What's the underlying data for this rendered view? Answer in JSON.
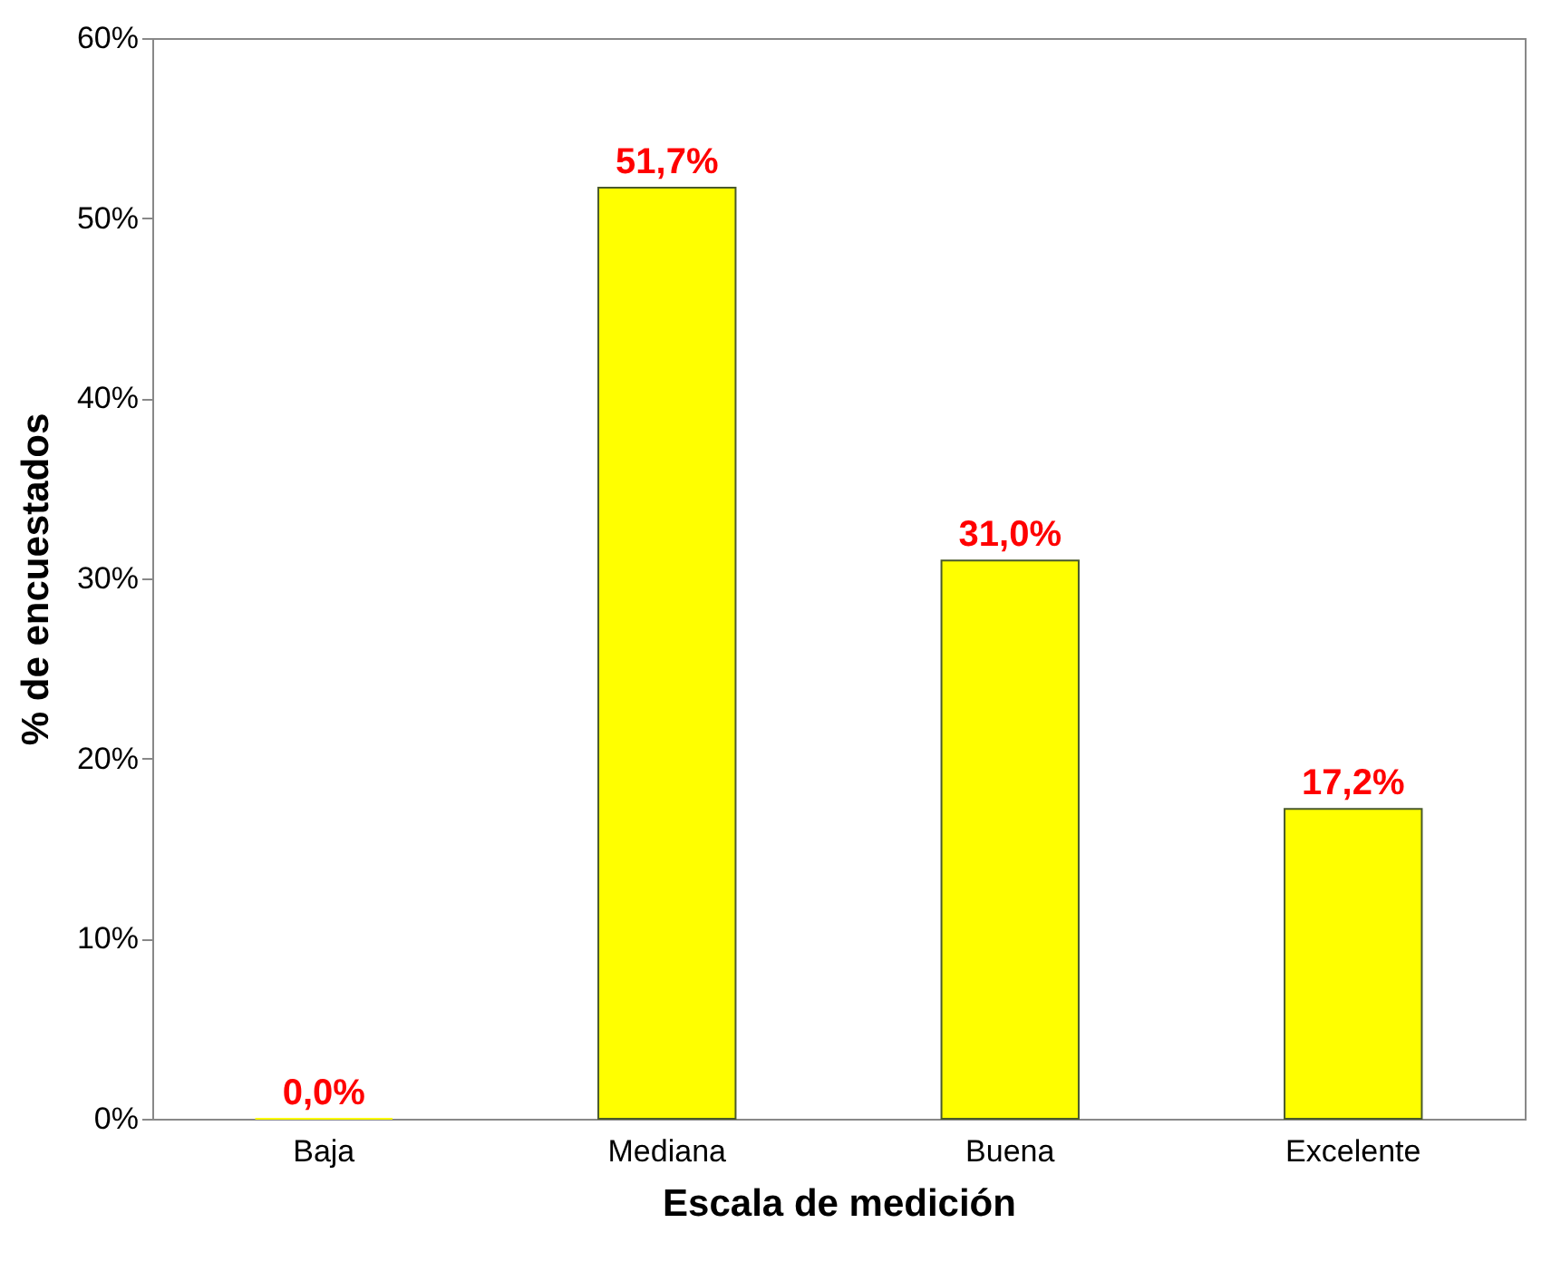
{
  "chart_data": {
    "type": "bar",
    "xlabel": "Escala de medición",
    "ylabel": "% de encuestados",
    "categories": [
      "Baja",
      "Mediana",
      "Buena",
      "Excelente"
    ],
    "values": [
      0,
      51.7,
      31.0,
      17.2
    ],
    "value_labels": [
      "0,0%",
      "51,7%",
      "31,0%",
      "17,2%"
    ],
    "color": "#ffff00",
    "ylim": [
      0,
      60
    ],
    "yticks": [
      {
        "value": 0,
        "label": "0%"
      },
      {
        "value": 10,
        "label": "10%"
      },
      {
        "value": 20,
        "label": "20%"
      },
      {
        "value": 30,
        "label": "30%"
      },
      {
        "value": 40,
        "label": "40%"
      },
      {
        "value": 50,
        "label": "50%"
      },
      {
        "value": 60,
        "label": "60%"
      }
    ],
    "grid": false
  }
}
